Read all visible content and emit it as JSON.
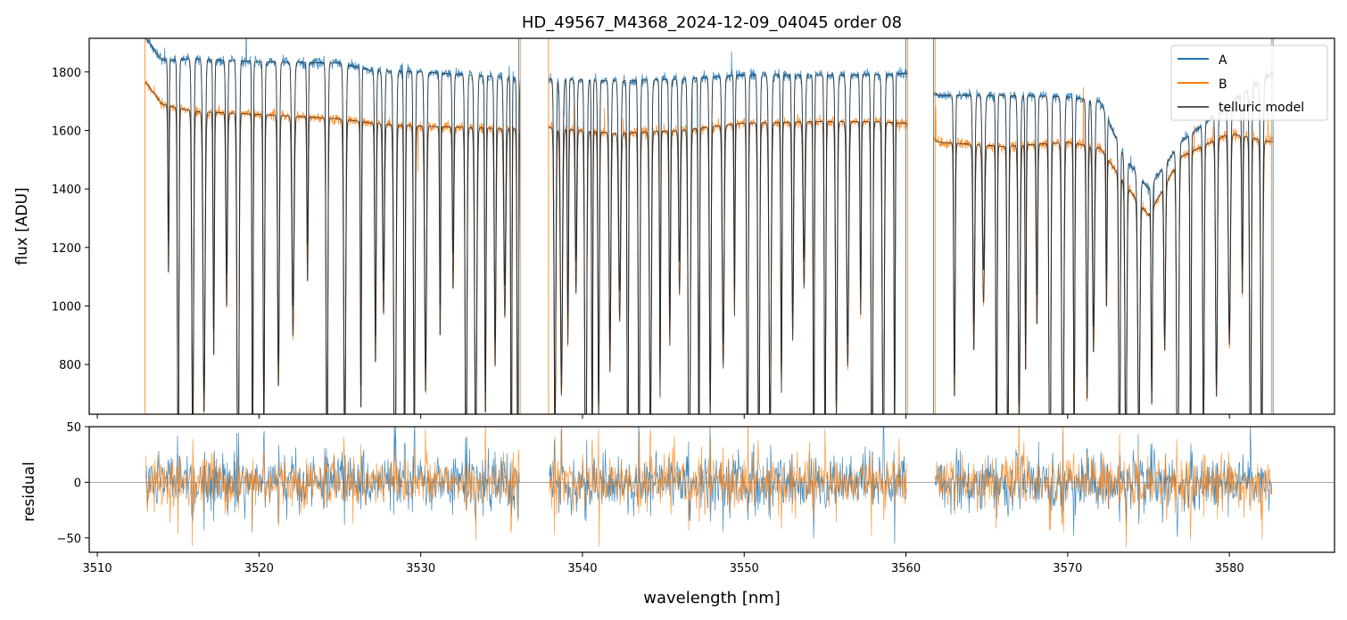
{
  "chart_data": [
    {
      "type": "line",
      "title": "HD_49567_M4368_2024-12-09_04045  order 08",
      "xlabel": "",
      "ylabel": "flux [ADU]",
      "xlim": [
        3509.5,
        3586.5
      ],
      "ylim": [
        630,
        1915
      ],
      "yticks": [
        800,
        1000,
        1200,
        1400,
        1600,
        1800
      ],
      "xticks": [
        3510,
        3520,
        3530,
        3540,
        3550,
        3560,
        3570,
        3580
      ],
      "grid": false,
      "legend_position": "top-right",
      "legend": [
        "A",
        "B",
        "telluric model"
      ],
      "segments": [
        [
          3512.95,
          3536.15
        ],
        [
          3537.9,
          3560.1
        ],
        [
          3561.75,
          3582.7
        ]
      ],
      "series": [
        {
          "name": "A",
          "color": "#1f77b4",
          "approx_continuum": [
            [
              3513,
              1915
            ],
            [
              3514,
              1840
            ],
            [
              3516,
              1845
            ],
            [
              3520,
              1835
            ],
            [
              3525,
              1830
            ],
            [
              3527,
              1805
            ],
            [
              3530,
              1800
            ],
            [
              3533,
              1790
            ],
            [
              3536,
              1780
            ],
            [
              3538,
              1775
            ],
            [
              3542,
              1770
            ],
            [
              3546,
              1775
            ],
            [
              3550,
              1790
            ],
            [
              3554,
              1790
            ],
            [
              3558,
              1790
            ],
            [
              3560,
              1795
            ],
            [
              3562,
              1720
            ],
            [
              3566,
              1720
            ],
            [
              3570,
              1715
            ],
            [
              3572,
              1700
            ],
            [
              3573.5,
              1510
            ],
            [
              3575,
              1400
            ],
            [
              3577,
              1560
            ],
            [
              3580,
              1690
            ],
            [
              3582.7,
              1800
            ]
          ]
        },
        {
          "name": "B",
          "color": "#ff7f0e",
          "approx_continuum": [
            [
              3513,
              1765
            ],
            [
              3514,
              1690
            ],
            [
              3516,
              1665
            ],
            [
              3520,
              1655
            ],
            [
              3525,
              1640
            ],
            [
              3527,
              1625
            ],
            [
              3530,
              1615
            ],
            [
              3533,
              1610
            ],
            [
              3536,
              1605
            ],
            [
              3538,
              1610
            ],
            [
              3542,
              1590
            ],
            [
              3546,
              1600
            ],
            [
              3550,
              1625
            ],
            [
              3554,
              1630
            ],
            [
              3558,
              1630
            ],
            [
              3560,
              1625
            ],
            [
              3562,
              1560
            ],
            [
              3566,
              1545
            ],
            [
              3570,
              1560
            ],
            [
              3572,
              1540
            ],
            [
              3573.5,
              1420
            ],
            [
              3575,
              1310
            ],
            [
              3577,
              1510
            ],
            [
              3580,
              1590
            ],
            [
              3582.7,
              1560
            ]
          ]
        },
        {
          "name": "telluric model",
          "color": "#222222"
        }
      ],
      "absorption_lines_nm": [
        3514.4,
        3515.0,
        3515.9,
        3516.6,
        3517.2,
        3518.0,
        3518.7,
        3519.6,
        3520.3,
        3521.2,
        3522.1,
        3523.0,
        3524.2,
        3525.3,
        3526.3,
        3527.2,
        3527.7,
        3528.4,
        3529.0,
        3529.6,
        3530.3,
        3531.2,
        3532.0,
        3532.8,
        3533.4,
        3534.0,
        3534.6,
        3535.2,
        3535.6,
        3536.0,
        3538.3,
        3538.7,
        3539.1,
        3539.6,
        3540.2,
        3540.6,
        3541.0,
        3541.7,
        3542.3,
        3542.8,
        3543.5,
        3544.2,
        3544.8,
        3545.4,
        3546.0,
        3546.6,
        3547.2,
        3547.9,
        3548.7,
        3549.4,
        3550.2,
        3550.9,
        3551.6,
        3552.3,
        3553.0,
        3553.7,
        3554.3,
        3555.0,
        3555.7,
        3556.4,
        3557.2,
        3557.9,
        3558.6,
        3559.3,
        3563.0,
        3564.2,
        3564.8,
        3565.6,
        3566.3,
        3567.0,
        3567.4,
        3568.1,
        3568.9,
        3569.7,
        3570.4,
        3571.2,
        3571.6,
        3572.4,
        3573.2,
        3573.6,
        3574.4,
        3575.2,
        3576.0,
        3576.8,
        3577.6,
        3578.4,
        3579.2,
        3580.0,
        3580.8,
        3581.3,
        3582.0
      ]
    },
    {
      "type": "line",
      "title": "",
      "xlabel": "wavelength [nm]",
      "ylabel": "residual",
      "xlim": [
        3509.5,
        3586.5
      ],
      "ylim": [
        -63,
        50
      ],
      "yticks": [
        -50,
        0,
        50
      ],
      "xticks": [
        3510,
        3520,
        3530,
        3540,
        3550,
        3560,
        3570,
        3580
      ],
      "grid": false,
      "reference_line_y": 0,
      "segments": [
        [
          3512.95,
          3536.15
        ],
        [
          3537.9,
          3560.1
        ],
        [
          3561.75,
          3582.7
        ]
      ],
      "series": [
        {
          "name": "A",
          "color": "#1f77b4",
          "approx_noise_std": 12
        },
        {
          "name": "B",
          "color": "#ff7f0e",
          "approx_noise_std": 11
        }
      ]
    }
  ]
}
